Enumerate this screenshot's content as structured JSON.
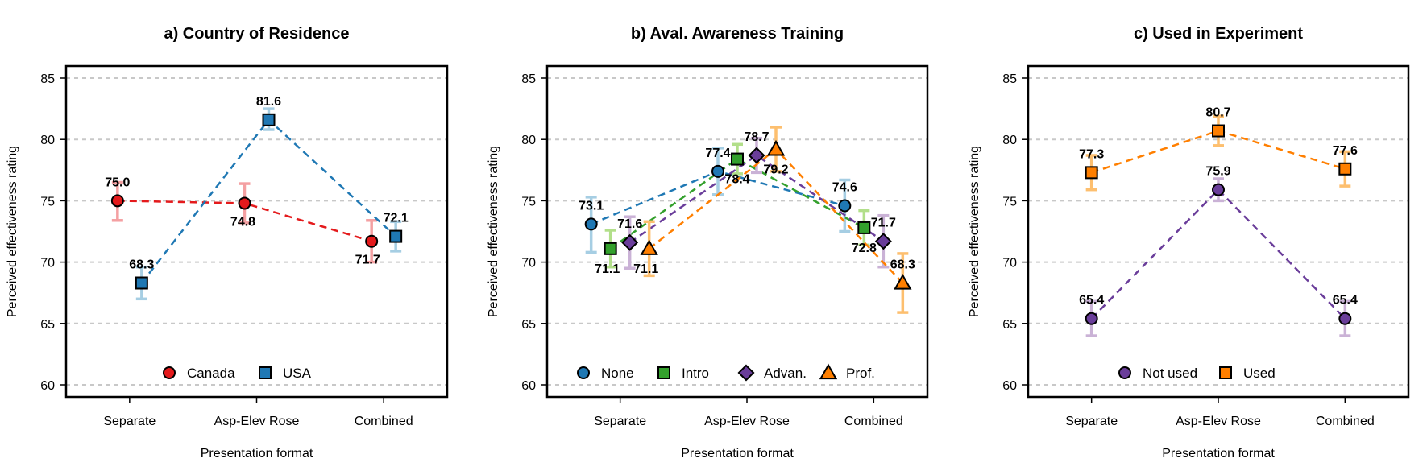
{
  "chart_data": [
    {
      "type": "line",
      "title": "a) Country of Residence",
      "xlabel": "Presentation format",
      "ylabel": "Perceived effectiveness rating",
      "categories": [
        "Separate",
        "Asp-Elev Rose",
        "Combined"
      ],
      "ylim": [
        60,
        85
      ],
      "yticks": [
        60,
        65,
        70,
        75,
        80,
        85
      ],
      "grid": "horizontal dashed",
      "legend": "bottom-center",
      "series": [
        {
          "name": "Canada",
          "marker": "circle",
          "color": "#e41a1c",
          "error_color": "#f4a0a2",
          "values": [
            75.0,
            74.8,
            71.7
          ],
          "labels": [
            "75.0",
            "74.8",
            "71.7"
          ],
          "error_low": [
            73.4,
            73.2,
            70.0
          ],
          "error_high": [
            76.5,
            76.4,
            73.4
          ]
        },
        {
          "name": "USA",
          "marker": "square",
          "color": "#1f78b4",
          "error_color": "#a6cee3",
          "values": [
            68.3,
            81.6,
            72.1
          ],
          "labels": [
            "68.3",
            "81.6",
            "72.1"
          ],
          "error_low": [
            67.0,
            80.8,
            70.9
          ],
          "error_high": [
            69.6,
            82.5,
            73.3
          ]
        }
      ]
    },
    {
      "type": "line",
      "title": "b) Aval. Awareness Training",
      "xlabel": "Presentation format",
      "ylabel": "Perceived effectiveness rating",
      "categories": [
        "Separate",
        "Asp-Elev Rose",
        "Combined"
      ],
      "ylim": [
        60,
        85
      ],
      "yticks": [
        60,
        65,
        70,
        75,
        80,
        85
      ],
      "grid": "horizontal dashed",
      "legend": "bottom-center",
      "series": [
        {
          "name": "None",
          "marker": "circle",
          "color": "#1f78b4",
          "error_color": "#a6cee3",
          "values": [
            73.1,
            77.4,
            74.6
          ],
          "labels": [
            "73.1",
            "77.4",
            "74.6"
          ],
          "error_low": [
            70.8,
            75.5,
            72.5
          ],
          "error_high": [
            75.3,
            79.3,
            76.7
          ]
        },
        {
          "name": "Intro",
          "marker": "square",
          "color": "#33a02c",
          "error_color": "#b2df8a",
          "values": [
            71.1,
            78.4,
            72.8
          ],
          "labels": [
            "71.1",
            "78.4",
            "72.8"
          ],
          "error_low": [
            69.6,
            77.2,
            71.4
          ],
          "error_high": [
            72.6,
            79.6,
            74.2
          ]
        },
        {
          "name": "Advan.",
          "marker": "diamond",
          "color": "#6a3d9a",
          "error_color": "#cab2d6",
          "values": [
            71.6,
            78.7,
            71.7
          ],
          "labels": [
            "71.6",
            "78.7",
            "71.7"
          ],
          "error_low": [
            69.5,
            77.3,
            69.6
          ],
          "error_high": [
            73.7,
            80.1,
            73.8
          ]
        },
        {
          "name": "Prof.",
          "marker": "triangle",
          "color": "#ff7f00",
          "error_color": "#fdbf6f",
          "values": [
            71.1,
            79.2,
            68.3
          ],
          "labels": [
            "71.1",
            "79.2",
            "68.3"
          ],
          "error_low": [
            68.9,
            77.4,
            65.9
          ],
          "error_high": [
            73.3,
            81.0,
            70.7
          ]
        }
      ]
    },
    {
      "type": "line",
      "title": "c) Used in Experiment",
      "xlabel": "Presentation format",
      "ylabel": "Perceived effectiveness rating",
      "categories": [
        "Separate",
        "Asp-Elev Rose",
        "Combined"
      ],
      "ylim": [
        60,
        85
      ],
      "yticks": [
        60,
        65,
        70,
        75,
        80,
        85
      ],
      "grid": "horizontal dashed",
      "legend": "bottom-center",
      "series": [
        {
          "name": "Not used",
          "marker": "circle",
          "color": "#6a3d9a",
          "error_color": "#cab2d6",
          "values": [
            65.4,
            75.9,
            65.4
          ],
          "labels": [
            "65.4",
            "75.9",
            "65.4"
          ],
          "error_low": [
            64.0,
            75.0,
            64.0
          ],
          "error_high": [
            66.8,
            76.8,
            66.8
          ]
        },
        {
          "name": "Used",
          "marker": "square",
          "color": "#ff7f00",
          "error_color": "#fdbf6f",
          "values": [
            77.3,
            80.7,
            77.6
          ],
          "labels": [
            "77.3",
            "80.7",
            "77.6"
          ],
          "error_low": [
            75.9,
            79.5,
            76.2
          ],
          "error_high": [
            78.7,
            81.9,
            79.0
          ]
        }
      ]
    }
  ]
}
